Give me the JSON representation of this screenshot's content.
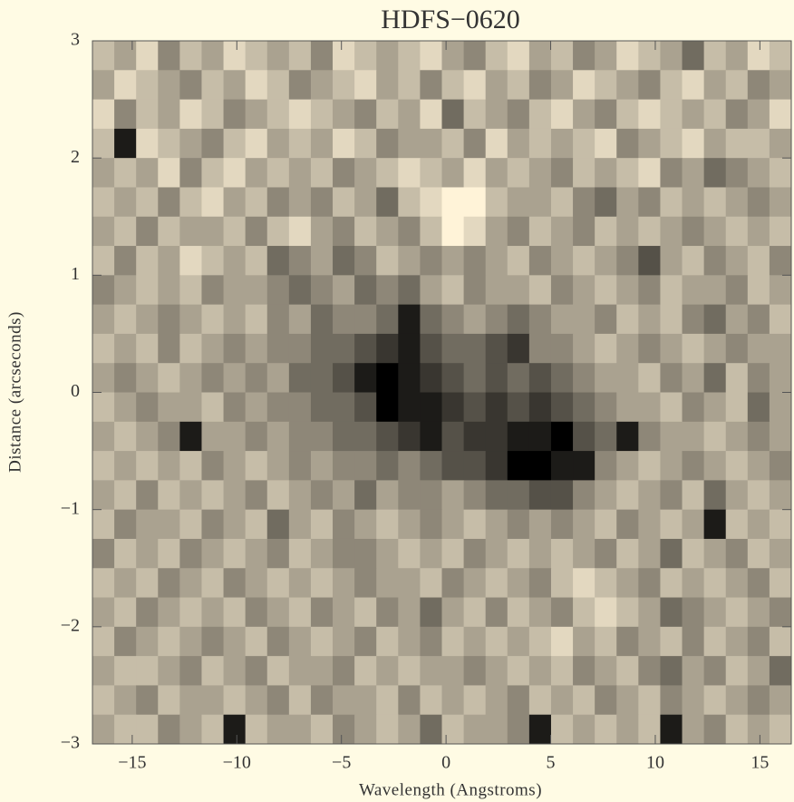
{
  "chart_data": {
    "type": "heatmap",
    "title": "HDFS−0620",
    "xlabel": "Wavelength (Angstroms)",
    "ylabel": "Distance (arcseconds)",
    "xlim": [
      -16.9,
      16.5
    ],
    "ylim": [
      -3,
      3
    ],
    "xticks": [
      {
        "value": -15,
        "label": "−15"
      },
      {
        "value": -10,
        "label": "−10"
      },
      {
        "value": -5,
        "label": "−5"
      },
      0,
      5,
      10,
      15
    ],
    "yticks": [
      {
        "value": -3,
        "label": "−3"
      },
      {
        "value": -2,
        "label": "−2"
      },
      {
        "value": -1,
        "label": "−1"
      },
      0,
      1,
      2,
      3
    ],
    "colormap": [
      "#fff3d8",
      "#000000"
    ],
    "zlim": [
      0,
      9
    ],
    "z": [
      [
        2,
        3,
        1,
        4,
        2,
        3,
        1,
        2,
        3,
        2,
        4,
        1,
        2,
        3,
        2,
        1,
        3,
        4,
        2,
        1,
        3,
        2,
        4,
        3,
        1,
        2,
        3,
        5,
        2,
        3,
        1,
        2
      ],
      [
        3,
        1,
        2,
        3,
        4,
        2,
        3,
        1,
        2,
        4,
        3,
        2,
        1,
        3,
        2,
        4,
        2,
        1,
        3,
        2,
        4,
        3,
        1,
        2,
        3,
        4,
        2,
        1,
        3,
        2,
        4,
        3
      ],
      [
        1,
        4,
        2,
        3,
        1,
        2,
        4,
        3,
        2,
        1,
        2,
        3,
        4,
        2,
        3,
        1,
        5,
        2,
        3,
        4,
        2,
        1,
        3,
        4,
        2,
        1,
        2,
        3,
        2,
        4,
        3,
        1
      ],
      [
        2,
        8,
        1,
        2,
        3,
        4,
        2,
        1,
        3,
        2,
        3,
        1,
        2,
        4,
        3,
        3,
        2,
        4,
        1,
        3,
        2,
        3,
        2,
        1,
        4,
        3,
        2,
        1,
        3,
        2,
        2,
        3
      ],
      [
        3,
        2,
        3,
        1,
        4,
        2,
        1,
        3,
        2,
        3,
        2,
        4,
        3,
        2,
        1,
        2,
        3,
        1,
        3,
        2,
        3,
        4,
        2,
        3,
        2,
        1,
        4,
        3,
        5,
        4,
        3,
        2
      ],
      [
        2,
        3,
        2,
        4,
        2,
        1,
        3,
        2,
        4,
        3,
        4,
        2,
        3,
        5,
        2,
        1,
        0,
        0,
        2,
        3,
        3,
        2,
        4,
        5,
        3,
        4,
        2,
        3,
        2,
        3,
        4,
        3
      ],
      [
        3,
        2,
        4,
        2,
        3,
        3,
        2,
        4,
        2,
        1,
        3,
        4,
        2,
        3,
        4,
        2,
        0,
        1,
        3,
        4,
        2,
        3,
        4,
        2,
        3,
        2,
        3,
        4,
        3,
        2,
        3,
        2
      ],
      [
        2,
        4,
        2,
        3,
        1,
        2,
        3,
        2,
        5,
        4,
        3,
        5,
        4,
        2,
        3,
        4,
        3,
        4,
        3,
        2,
        4,
        3,
        2,
        3,
        4,
        6,
        3,
        2,
        4,
        3,
        2,
        4
      ],
      [
        4,
        3,
        2,
        3,
        2,
        4,
        3,
        3,
        4,
        5,
        4,
        3,
        5,
        4,
        5,
        3,
        2,
        4,
        3,
        3,
        2,
        4,
        3,
        2,
        3,
        4,
        2,
        3,
        3,
        4,
        2,
        3
      ],
      [
        3,
        2,
        3,
        4,
        3,
        2,
        3,
        2,
        4,
        3,
        5,
        4,
        4,
        5,
        8,
        5,
        4,
        3,
        4,
        5,
        4,
        3,
        3,
        4,
        2,
        3,
        2,
        4,
        5,
        3,
        4,
        2
      ],
      [
        2,
        3,
        2,
        4,
        2,
        3,
        4,
        3,
        4,
        4,
        5,
        5,
        6,
        7,
        8,
        6,
        5,
        5,
        6,
        7,
        4,
        4,
        3,
        2,
        3,
        4,
        3,
        2,
        3,
        4,
        3,
        3
      ],
      [
        3,
        4,
        3,
        2,
        3,
        4,
        3,
        4,
        3,
        5,
        5,
        6,
        8,
        9,
        8,
        7,
        6,
        5,
        6,
        5,
        6,
        5,
        4,
        3,
        3,
        2,
        4,
        3,
        5,
        2,
        4,
        3
      ],
      [
        2,
        3,
        4,
        3,
        3,
        2,
        4,
        3,
        4,
        4,
        5,
        5,
        6,
        9,
        8,
        8,
        7,
        6,
        7,
        6,
        7,
        6,
        5,
        4,
        3,
        3,
        2,
        4,
        3,
        2,
        5,
        3
      ],
      [
        3,
        2,
        3,
        4,
        8,
        3,
        3,
        4,
        3,
        4,
        4,
        5,
        5,
        6,
        7,
        8,
        6,
        7,
        7,
        8,
        8,
        9,
        6,
        5,
        8,
        4,
        3,
        3,
        2,
        3,
        4,
        3
      ],
      [
        2,
        3,
        2,
        3,
        2,
        4,
        3,
        2,
        3,
        4,
        3,
        4,
        4,
        5,
        4,
        5,
        6,
        6,
        7,
        9,
        9,
        8,
        8,
        4,
        3,
        2,
        3,
        4,
        3,
        2,
        3,
        4
      ],
      [
        3,
        2,
        4,
        2,
        3,
        2,
        3,
        4,
        2,
        3,
        4,
        3,
        5,
        3,
        4,
        4,
        3,
        4,
        5,
        5,
        6,
        6,
        4,
        3,
        2,
        3,
        4,
        2,
        5,
        3,
        2,
        3
      ],
      [
        2,
        4,
        3,
        3,
        2,
        4,
        3,
        2,
        5,
        3,
        2,
        4,
        3,
        2,
        3,
        4,
        3,
        2,
        3,
        4,
        3,
        4,
        3,
        2,
        4,
        3,
        2,
        3,
        8,
        2,
        3,
        2
      ],
      [
        4,
        2,
        3,
        2,
        4,
        3,
        2,
        3,
        4,
        2,
        3,
        4,
        4,
        3,
        2,
        3,
        2,
        4,
        3,
        2,
        3,
        2,
        3,
        4,
        2,
        3,
        5,
        2,
        3,
        4,
        2,
        3
      ],
      [
        2,
        3,
        2,
        4,
        3,
        2,
        4,
        3,
        2,
        3,
        2,
        3,
        4,
        3,
        3,
        2,
        4,
        3,
        2,
        3,
        4,
        2,
        1,
        2,
        3,
        4,
        2,
        3,
        2,
        3,
        4,
        2
      ],
      [
        3,
        2,
        4,
        3,
        2,
        3,
        2,
        4,
        3,
        2,
        4,
        3,
        2,
        4,
        3,
        5,
        3,
        2,
        4,
        2,
        3,
        4,
        2,
        1,
        2,
        3,
        5,
        4,
        3,
        2,
        3,
        4
      ],
      [
        2,
        4,
        3,
        2,
        3,
        4,
        3,
        2,
        4,
        3,
        2,
        3,
        4,
        2,
        3,
        4,
        2,
        3,
        2,
        3,
        2,
        1,
        3,
        2,
        4,
        3,
        2,
        4,
        2,
        3,
        4,
        2
      ],
      [
        3,
        2,
        2,
        3,
        4,
        2,
        3,
        4,
        2,
        3,
        3,
        4,
        2,
        3,
        2,
        3,
        3,
        4,
        3,
        2,
        3,
        2,
        4,
        3,
        2,
        4,
        5,
        3,
        4,
        2,
        3,
        5
      ],
      [
        2,
        3,
        4,
        2,
        3,
        3,
        2,
        3,
        4,
        2,
        4,
        3,
        3,
        2,
        4,
        2,
        3,
        2,
        3,
        4,
        2,
        3,
        2,
        4,
        3,
        2,
        4,
        3,
        2,
        3,
        4,
        3
      ],
      [
        3,
        2,
        2,
        4,
        3,
        2,
        8,
        2,
        3,
        3,
        2,
        4,
        3,
        2,
        3,
        5,
        2,
        3,
        3,
        4,
        8,
        2,
        3,
        2,
        3,
        2,
        8,
        3,
        4,
        2,
        3,
        2
      ]
    ]
  }
}
